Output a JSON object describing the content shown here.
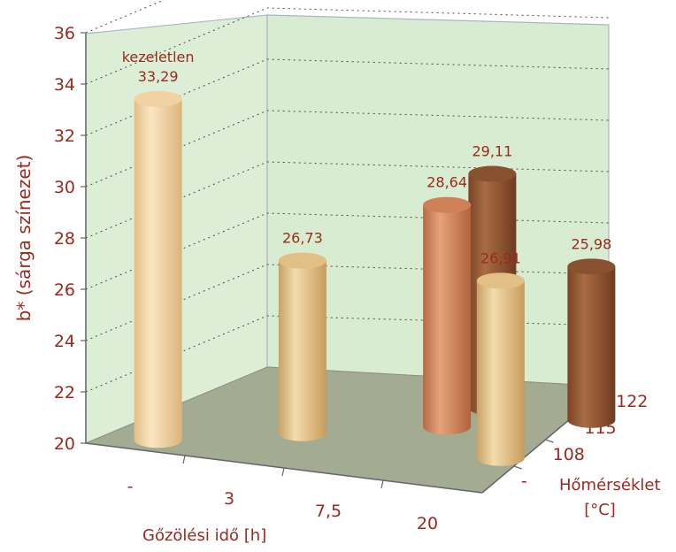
{
  "chart_data": {
    "type": "bar",
    "style": "3d-cylinder",
    "ylabel": "b* (sárga színezet)",
    "ylim": [
      20,
      36
    ],
    "yticks": [
      20,
      22,
      24,
      26,
      28,
      30,
      32,
      34,
      36
    ],
    "x_axis": {
      "title": "Gőzölési idő [h]",
      "categories": [
        "-",
        "3",
        "7,5",
        "20"
      ]
    },
    "depth_axis": {
      "title_line1": "Hőmérséklet",
      "title_line2": "[°C]",
      "categories": [
        "-",
        "108",
        "115",
        "122"
      ]
    },
    "grid": true,
    "bars": [
      {
        "x": "-",
        "temperature": "-",
        "value": 33.29,
        "label": "33,29",
        "name": "kezeletlen"
      },
      {
        "x": "3",
        "temperature": "108",
        "value": 26.73,
        "label": "26,73"
      },
      {
        "x": "7,5",
        "temperature": "115",
        "value": 28.64,
        "label": "28,64"
      },
      {
        "x": "7,5",
        "temperature": "122",
        "value": 29.11,
        "label": "29,11"
      },
      {
        "x": "20",
        "temperature": "108",
        "value": 26.91,
        "label": "26,91"
      },
      {
        "x": "20",
        "temperature": "122",
        "value": 25.98,
        "label": "25,98"
      }
    ],
    "colors": {
      "108": "#e8c78e",
      "115": "#cf855a",
      "122": "#8e5634",
      "-": "#f2d6a8",
      "text": "#9a2a1e",
      "wall": "#d9ecd2",
      "floor": "#a3ab93"
    }
  }
}
